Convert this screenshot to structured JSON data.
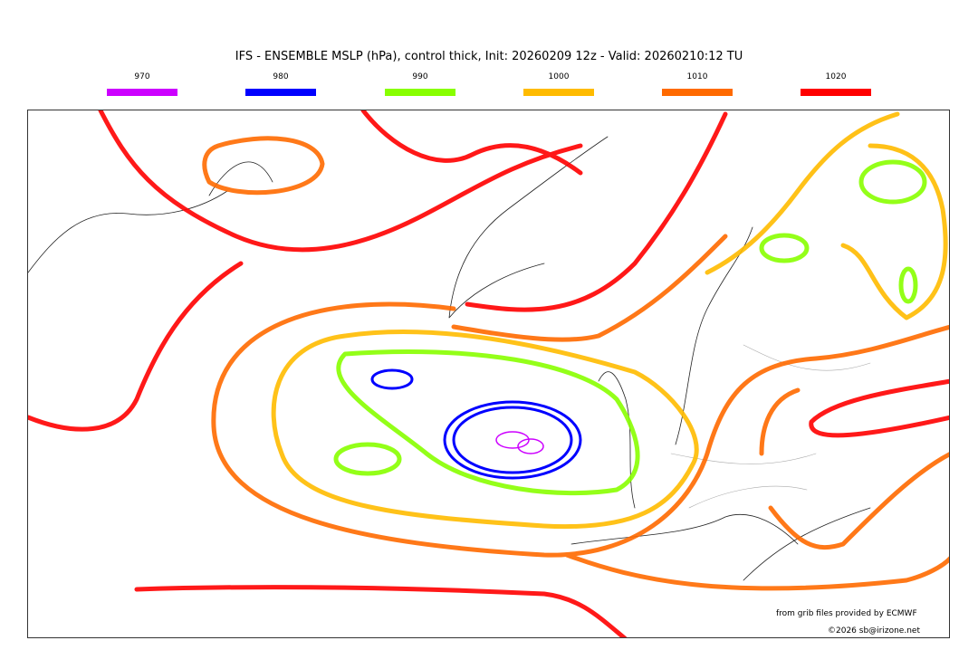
{
  "title": "IFS - ENSEMBLE MSLP (hPa), control thick, Init: 20260209 12z - Valid: 20260210:12 TU",
  "legend": [
    {
      "label": "970",
      "color": "#cc00ff"
    },
    {
      "label": "980",
      "color": "#0000ff"
    },
    {
      "label": "990",
      "color": "#88ff00"
    },
    {
      "label": "1000",
      "color": "#ffbb00"
    },
    {
      "label": "1010",
      "color": "#ff6a00"
    },
    {
      "label": "1020",
      "color": "#ff0000"
    }
  ],
  "credits": {
    "source": "from grib files provided by ECMWF",
    "copyright": "©2026 sb@irizone.net"
  }
}
